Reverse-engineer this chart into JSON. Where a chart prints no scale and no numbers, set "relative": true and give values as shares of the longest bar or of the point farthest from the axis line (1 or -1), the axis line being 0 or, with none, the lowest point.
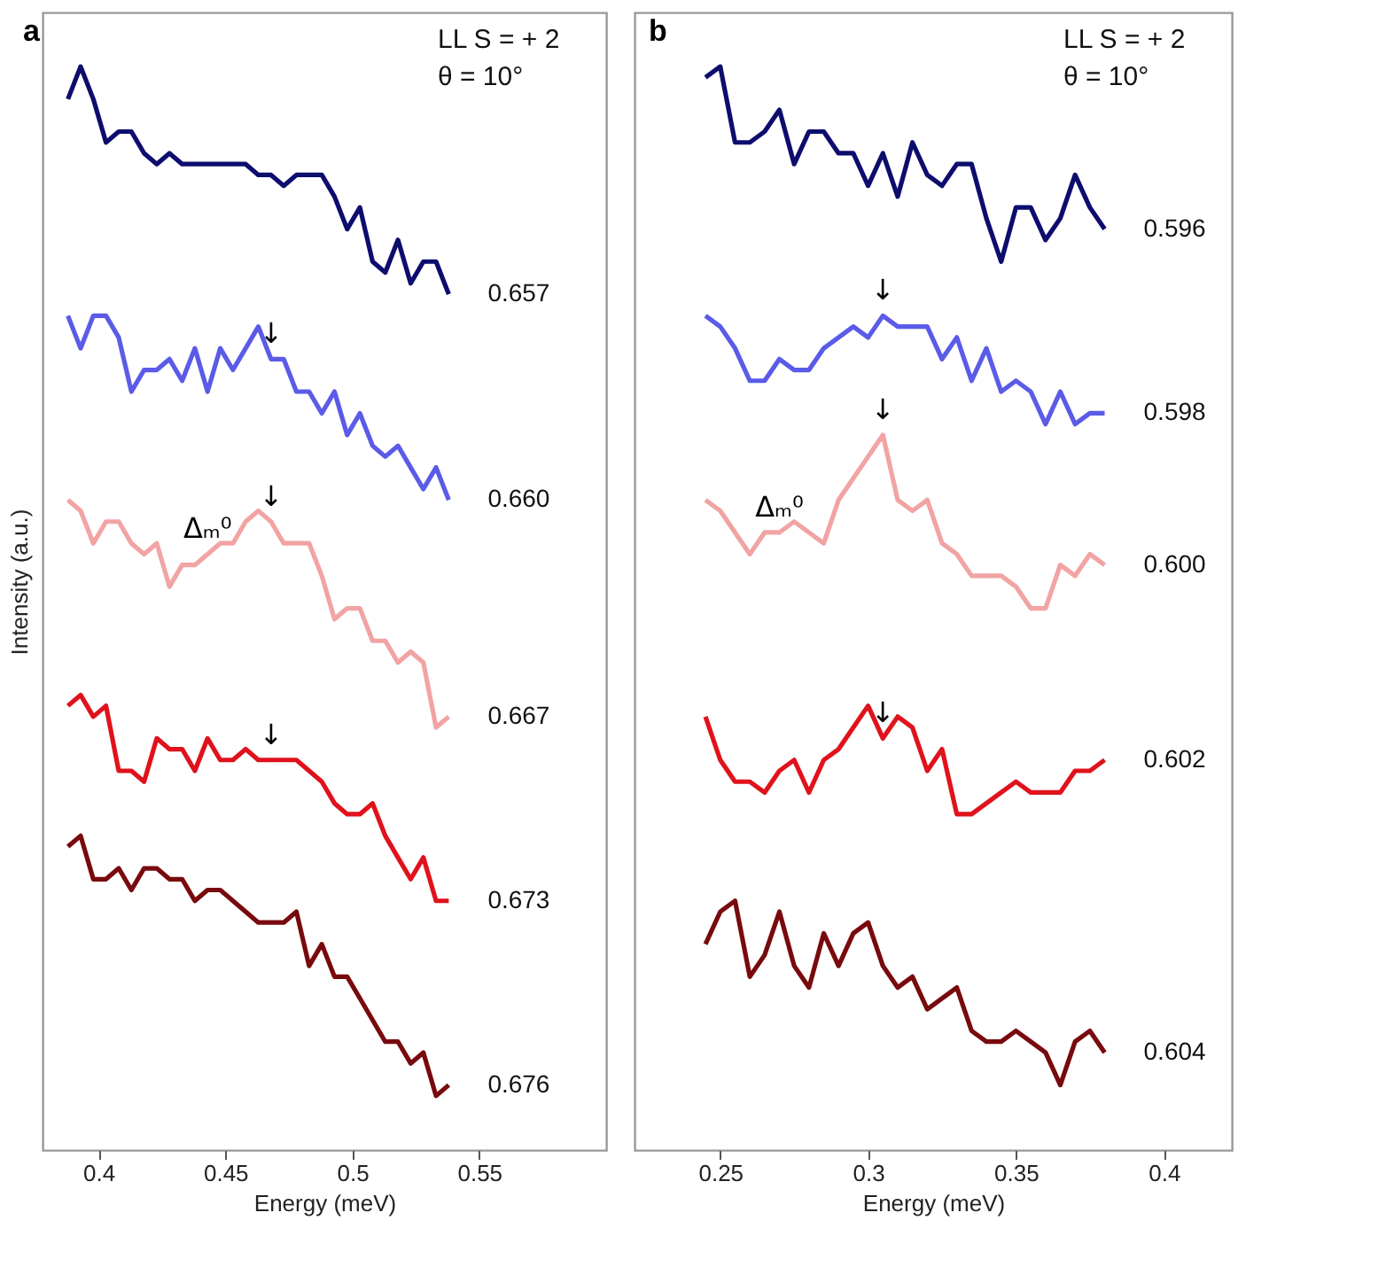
{
  "chart_data": [
    {
      "type": "line",
      "title": "a",
      "xlabel": "Energy (meV)",
      "ylabel": "Intensity (a.u.)",
      "relative": true,
      "xlim": [
        0.378,
        0.6
      ],
      "xticks": [
        0.4,
        0.45,
        0.5,
        0.55
      ],
      "tick_labels": "x",
      "grid": false,
      "legend": false,
      "marker": "none",
      "line_style": "solid",
      "x": [
        0.388,
        0.393,
        0.398,
        0.403,
        0.408,
        0.413,
        0.418,
        0.423,
        0.428,
        0.433,
        0.438,
        0.443,
        0.448,
        0.453,
        0.458,
        0.463,
        0.468,
        0.473,
        0.478,
        0.483,
        0.488,
        0.493,
        0.498,
        0.503,
        0.508,
        0.513,
        0.518,
        0.523,
        0.528,
        0.533,
        0.538
      ],
      "series": [
        {
          "name": "0.657",
          "color": "#0d0d6e",
          "values": [
            0.97,
            1.0,
            0.97,
            0.93,
            0.94,
            0.94,
            0.92,
            0.91,
            0.92,
            0.91,
            0.91,
            0.91,
            0.91,
            0.91,
            0.91,
            0.9,
            0.9,
            0.89,
            0.9,
            0.9,
            0.9,
            0.88,
            0.85,
            0.87,
            0.82,
            0.81,
            0.84,
            0.8,
            0.82,
            0.82,
            0.79
          ]
        },
        {
          "name": "0.660",
          "color": "#5b5be8",
          "values": [
            0.77,
            0.74,
            0.77,
            0.77,
            0.75,
            0.7,
            0.72,
            0.72,
            0.73,
            0.71,
            0.74,
            0.7,
            0.74,
            0.72,
            0.74,
            0.76,
            0.73,
            0.73,
            0.7,
            0.7,
            0.68,
            0.7,
            0.66,
            0.68,
            0.65,
            0.64,
            0.65,
            0.63,
            0.61,
            0.63,
            0.6
          ]
        },
        {
          "name": "0.667",
          "color": "#f2a3a3",
          "values": [
            0.6,
            0.59,
            0.56,
            0.58,
            0.58,
            0.56,
            0.55,
            0.56,
            0.52,
            0.54,
            0.54,
            0.55,
            0.56,
            0.56,
            0.58,
            0.59,
            0.58,
            0.56,
            0.56,
            0.56,
            0.53,
            0.49,
            0.5,
            0.5,
            0.47,
            0.47,
            0.45,
            0.46,
            0.45,
            0.39,
            0.4
          ]
        },
        {
          "name": "0.673",
          "color": "#e0121c",
          "values": [
            0.41,
            0.42,
            0.4,
            0.41,
            0.35,
            0.35,
            0.34,
            0.38,
            0.37,
            0.37,
            0.35,
            0.38,
            0.36,
            0.36,
            0.37,
            0.36,
            0.36,
            0.36,
            0.36,
            0.35,
            0.34,
            0.32,
            0.31,
            0.31,
            0.32,
            0.29,
            0.27,
            0.25,
            0.27,
            0.23,
            0.23
          ]
        },
        {
          "name": "0.676",
          "color": "#780a0e",
          "values": [
            0.28,
            0.29,
            0.25,
            0.25,
            0.26,
            0.24,
            0.26,
            0.26,
            0.25,
            0.25,
            0.23,
            0.24,
            0.24,
            0.23,
            0.22,
            0.21,
            0.21,
            0.21,
            0.22,
            0.17,
            0.19,
            0.16,
            0.16,
            0.14,
            0.12,
            0.1,
            0.1,
            0.08,
            0.09,
            0.05,
            0.06
          ]
        }
      ],
      "annotations": [
        "LL S = + 2",
        "θ = 10°",
        {
          "text": "↓",
          "x": 0.468,
          "y": 0.73
        },
        {
          "text": "↓",
          "x": 0.468,
          "y": 0.58
        },
        {
          "text": "↓",
          "x": 0.468,
          "y": 0.36
        },
        {
          "text": "Δₘ⁰",
          "x": 0.443,
          "y": 0.55
        }
      ]
    },
    {
      "type": "line",
      "title": "b",
      "xlabel": "Energy (meV)",
      "relative": true,
      "xlim": [
        0.221,
        0.423
      ],
      "xticks": [
        0.25,
        0.3,
        0.35,
        0.4
      ],
      "tick_labels": "x",
      "grid": false,
      "legend": false,
      "marker": "none",
      "line_style": "solid",
      "x": [
        0.245,
        0.25,
        0.255,
        0.26,
        0.265,
        0.27,
        0.275,
        0.28,
        0.285,
        0.29,
        0.295,
        0.3,
        0.305,
        0.31,
        0.315,
        0.32,
        0.325,
        0.33,
        0.335,
        0.34,
        0.345,
        0.35,
        0.355,
        0.36,
        0.365,
        0.37,
        0.375,
        0.38
      ],
      "series": [
        {
          "name": "0.596",
          "color": "#0d0d6e",
          "values": [
            0.99,
            1.0,
            0.93,
            0.93,
            0.94,
            0.96,
            0.91,
            0.94,
            0.94,
            0.92,
            0.92,
            0.89,
            0.92,
            0.88,
            0.93,
            0.9,
            0.89,
            0.91,
            0.91,
            0.86,
            0.82,
            0.87,
            0.87,
            0.84,
            0.86,
            0.9,
            0.87,
            0.85
          ]
        },
        {
          "name": "0.598",
          "color": "#5b5be8",
          "values": [
            0.77,
            0.76,
            0.74,
            0.71,
            0.71,
            0.73,
            0.72,
            0.72,
            0.74,
            0.75,
            0.76,
            0.75,
            0.77,
            0.76,
            0.76,
            0.76,
            0.73,
            0.75,
            0.71,
            0.74,
            0.7,
            0.71,
            0.7,
            0.67,
            0.7,
            0.67,
            0.68,
            0.68
          ]
        },
        {
          "name": "0.600",
          "color": "#f2a3a3",
          "values": [
            0.6,
            0.59,
            0.57,
            0.55,
            0.57,
            0.57,
            0.58,
            0.57,
            0.56,
            0.6,
            0.62,
            0.64,
            0.66,
            0.6,
            0.59,
            0.6,
            0.56,
            0.55,
            0.53,
            0.53,
            0.53,
            0.52,
            0.5,
            0.5,
            0.54,
            0.53,
            0.55,
            0.54
          ]
        },
        {
          "name": "0.602",
          "color": "#e0121c",
          "values": [
            0.4,
            0.36,
            0.34,
            0.34,
            0.33,
            0.35,
            0.36,
            0.33,
            0.36,
            0.37,
            0.39,
            0.41,
            0.38,
            0.4,
            0.39,
            0.35,
            0.37,
            0.31,
            0.31,
            0.32,
            0.33,
            0.34,
            0.33,
            0.33,
            0.33,
            0.35,
            0.35,
            0.36
          ]
        },
        {
          "name": "0.604",
          "color": "#780a0e",
          "values": [
            0.19,
            0.22,
            0.23,
            0.16,
            0.18,
            0.22,
            0.17,
            0.15,
            0.2,
            0.17,
            0.2,
            0.21,
            0.17,
            0.15,
            0.16,
            0.13,
            0.14,
            0.15,
            0.11,
            0.1,
            0.1,
            0.11,
            0.1,
            0.09,
            0.06,
            0.1,
            0.11,
            0.09
          ]
        }
      ],
      "annotations": [
        "LL S = + 2",
        "θ = 10°",
        {
          "text": "↓",
          "x": 0.305,
          "y": 0.77
        },
        {
          "text": "↓",
          "x": 0.305,
          "y": 0.66
        },
        {
          "text": "↓",
          "x": 0.305,
          "y": 0.38
        },
        {
          "text": "Δₘ⁰",
          "x": 0.27,
          "y": 0.57
        }
      ]
    }
  ]
}
